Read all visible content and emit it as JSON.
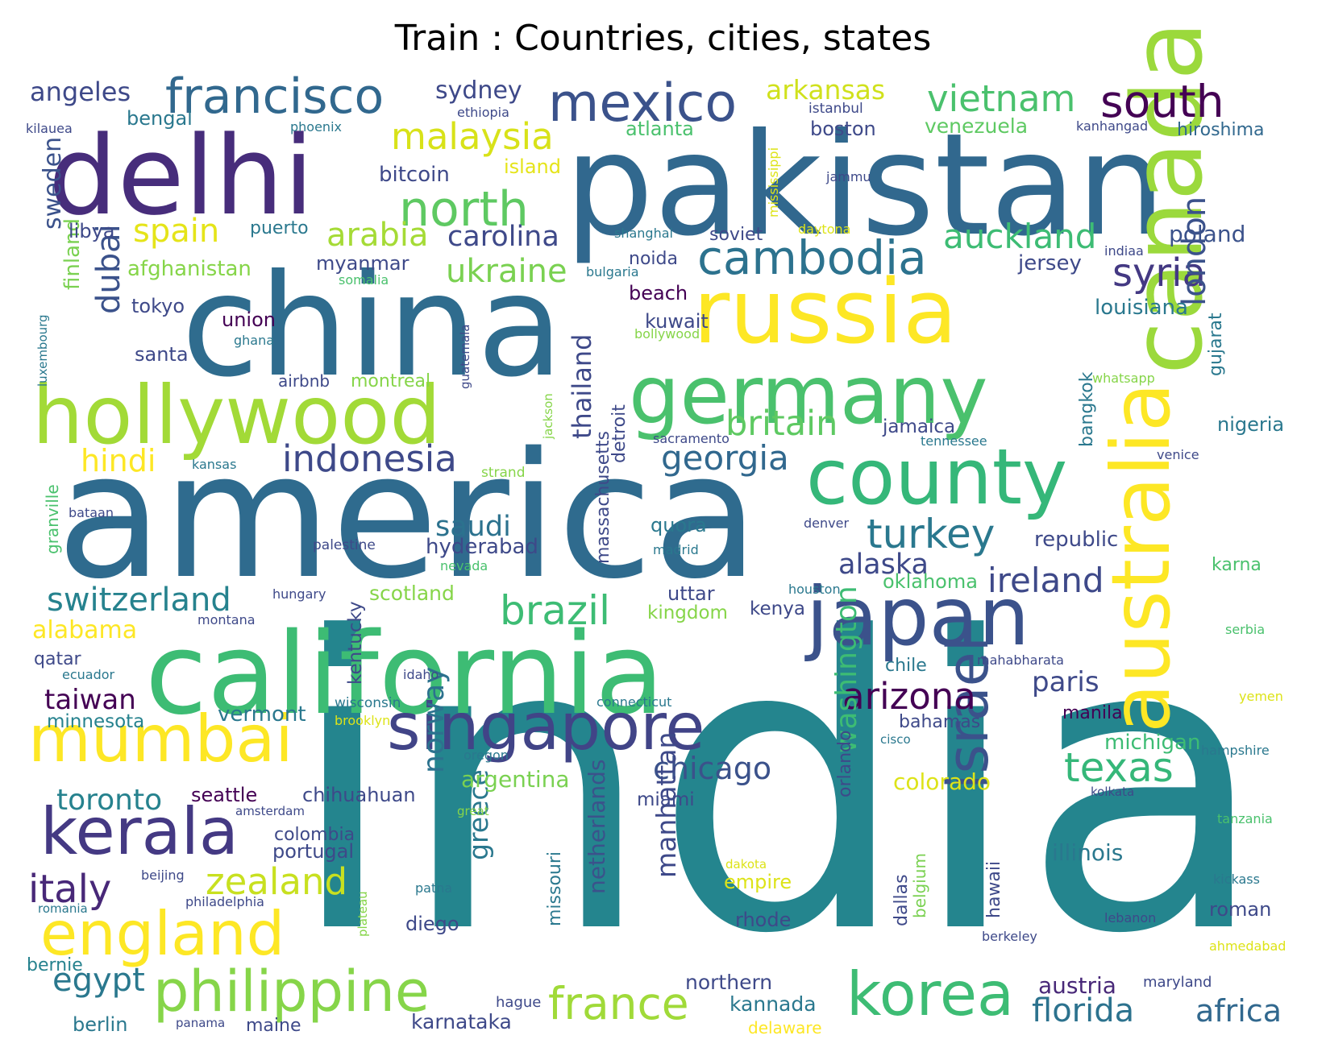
{
  "title": "Train : Countries, cities, states",
  "words": [
    {
      "text": "india",
      "color": "#24858e"
    },
    {
      "text": "america",
      "color": "#2f6b8e"
    },
    {
      "text": "pakistan",
      "color": "#31688e"
    },
    {
      "text": "china",
      "color": "#2f6c8e"
    },
    {
      "text": "california",
      "color": "#3dbc74"
    },
    {
      "text": "delhi",
      "color": "#472d7b"
    },
    {
      "text": "canada",
      "color": "#9bd93c"
    },
    {
      "text": "australia",
      "color": "#fde725"
    },
    {
      "text": "russia",
      "color": "#fde725"
    },
    {
      "text": "germany",
      "color": "#4ac16d"
    },
    {
      "text": "hollywood",
      "color": "#a2da37"
    },
    {
      "text": "japan",
      "color": "#3b528b"
    },
    {
      "text": "county",
      "color": "#35b779"
    },
    {
      "text": "singapore",
      "color": "#414487"
    },
    {
      "text": "mumbai",
      "color": "#fde725"
    },
    {
      "text": "kerala",
      "color": "#443983"
    },
    {
      "text": "england",
      "color": "#fde725"
    },
    {
      "text": "philippine",
      "color": "#86d549"
    },
    {
      "text": "korea",
      "color": "#3dbc74"
    },
    {
      "text": "israel",
      "color": "#3b528b"
    },
    {
      "text": "mexico",
      "color": "#3b528b"
    },
    {
      "text": "francisco",
      "color": "#31688e"
    },
    {
      "text": "south",
      "color": "#440154"
    },
    {
      "text": "north",
      "color": "#5ec962"
    },
    {
      "text": "cambodia",
      "color": "#2c728e"
    },
    {
      "text": "france",
      "color": "#a0da39"
    },
    {
      "text": "brazil",
      "color": "#3dbc74"
    },
    {
      "text": "italy",
      "color": "#482878"
    },
    {
      "text": "zealand",
      "color": "#c8e020"
    },
    {
      "text": "texas",
      "color": "#35b779"
    },
    {
      "text": "turkey",
      "color": "#2a788e"
    },
    {
      "text": "arizona",
      "color": "#440154"
    },
    {
      "text": "indonesia",
      "color": "#3e4989"
    },
    {
      "text": "britain",
      "color": "#5ec962"
    },
    {
      "text": "georgia",
      "color": "#31688e"
    },
    {
      "text": "ireland",
      "color": "#3e4989"
    },
    {
      "text": "switzerland",
      "color": "#26828e"
    },
    {
      "text": "vietnam",
      "color": "#4ac16d"
    },
    {
      "text": "syria",
      "color": "#443983"
    },
    {
      "text": "london",
      "color": "#3b528b"
    },
    {
      "text": "dubai",
      "color": "#3b528b"
    },
    {
      "text": "malaysia",
      "color": "#d8e219"
    },
    {
      "text": "spain",
      "color": "#e5e419"
    },
    {
      "text": "ukraine",
      "color": "#7ad151"
    },
    {
      "text": "auckland",
      "color": "#3dbc74"
    },
    {
      "text": "arabia",
      "color": "#a5db36"
    },
    {
      "text": "carolina",
      "color": "#3e4989"
    },
    {
      "text": "washington",
      "color": "#3dbc74"
    },
    {
      "text": "norway",
      "color": "#2c728e"
    },
    {
      "text": "florida",
      "color": "#2c728e"
    },
    {
      "text": "africa",
      "color": "#31688e"
    },
    {
      "text": "egypt",
      "color": "#2a788e"
    },
    {
      "text": "toronto",
      "color": "#26828e"
    },
    {
      "text": "chicago",
      "color": "#3b528b"
    },
    {
      "text": "alaska",
      "color": "#3e4989"
    },
    {
      "text": "saudi",
      "color": "#2c728e"
    },
    {
      "text": "hindi",
      "color": "#fde725"
    },
    {
      "text": "taiwan",
      "color": "#440154"
    },
    {
      "text": "paris",
      "color": "#3e4989"
    },
    {
      "text": "thailand",
      "color": "#3e4989"
    },
    {
      "text": "manhattan",
      "color": "#3e4989"
    },
    {
      "text": "greece",
      "color": "#2a788e"
    },
    {
      "text": "netherlands",
      "color": "#3b528b"
    },
    {
      "text": "angeles",
      "color": "#3e4989"
    },
    {
      "text": "arkansas",
      "color": "#d0e11c"
    },
    {
      "text": "sydney",
      "color": "#3e4989"
    },
    {
      "text": "alabama",
      "color": "#fde725"
    },
    {
      "text": "argentina",
      "color": "#7ad151"
    },
    {
      "text": "colorado",
      "color": "#dde318"
    },
    {
      "text": "austria",
      "color": "#482878"
    },
    {
      "text": "kannada",
      "color": "#2a788e"
    },
    {
      "text": "karnataka",
      "color": "#3e4989"
    },
    {
      "text": "northern",
      "color": "#3e4989"
    },
    {
      "text": "illinois",
      "color": "#2a788e"
    },
    {
      "text": "poland",
      "color": "#3b528b"
    },
    {
      "text": "venezuela",
      "color": "#5ec962"
    },
    {
      "text": "louisiana",
      "color": "#2a788e"
    },
    {
      "text": "nigeria",
      "color": "#2a788e"
    },
    {
      "text": "michigan",
      "color": "#3dbc74"
    },
    {
      "text": "republic",
      "color": "#3e4989"
    },
    {
      "text": "oklahoma",
      "color": "#4ac16d"
    },
    {
      "text": "afghanistan",
      "color": "#86d549"
    },
    {
      "text": "sweden",
      "color": "#3b528b"
    },
    {
      "text": "finland",
      "color": "#7ad151"
    },
    {
      "text": "tokyo",
      "color": "#3e4989"
    },
    {
      "text": "santa",
      "color": "#3e4989"
    },
    {
      "text": "union",
      "color": "#440154"
    },
    {
      "text": "bitcoin",
      "color": "#3e4989"
    },
    {
      "text": "island",
      "color": "#e5e419"
    },
    {
      "text": "atlanta",
      "color": "#4ac16d"
    },
    {
      "text": "boston",
      "color": "#3e4989"
    },
    {
      "text": "hiroshima",
      "color": "#31688e"
    },
    {
      "text": "bengal",
      "color": "#2a788e"
    },
    {
      "text": "libya",
      "color": "#3e4989"
    },
    {
      "text": "puerto",
      "color": "#2a788e"
    },
    {
      "text": "myanmar",
      "color": "#3e4989"
    },
    {
      "text": "noida",
      "color": "#3e4989"
    },
    {
      "text": "soviet",
      "color": "#3e4989"
    },
    {
      "text": "beach",
      "color": "#440154"
    },
    {
      "text": "kuwait",
      "color": "#3e4989"
    },
    {
      "text": "jersey",
      "color": "#3e4989"
    },
    {
      "text": "hyderabad",
      "color": "#3e4989"
    },
    {
      "text": "quora",
      "color": "#2a788e"
    },
    {
      "text": "kingdom",
      "color": "#86d549"
    },
    {
      "text": "uttar",
      "color": "#3e4989"
    },
    {
      "text": "kenya",
      "color": "#3e4989"
    },
    {
      "text": "scotland",
      "color": "#86d549"
    },
    {
      "text": "kentucky",
      "color": "#3e4989"
    },
    {
      "text": "massachusetts",
      "color": "#3e4989"
    },
    {
      "text": "detroit",
      "color": "#3e4989"
    },
    {
      "text": "bangkok",
      "color": "#2a788e"
    },
    {
      "text": "gujarat",
      "color": "#2a788e"
    },
    {
      "text": "jamaica",
      "color": "#3e4989"
    },
    {
      "text": "qatar",
      "color": "#3e4989"
    },
    {
      "text": "vermont",
      "color": "#2a788e"
    },
    {
      "text": "minnesota",
      "color": "#26828e"
    },
    {
      "text": "seattle",
      "color": "#440154"
    },
    {
      "text": "chihuahuan",
      "color": "#3e4989"
    },
    {
      "text": "colombia",
      "color": "#3e4989"
    },
    {
      "text": "portugal",
      "color": "#3e4989"
    },
    {
      "text": "miami",
      "color": "#3e4989"
    },
    {
      "text": "orlando",
      "color": "#3e4989"
    },
    {
      "text": "chile",
      "color": "#2a788e"
    },
    {
      "text": "bahamas",
      "color": "#3e4989"
    },
    {
      "text": "manila",
      "color": "#440154"
    },
    {
      "text": "karna",
      "color": "#4ac16d"
    },
    {
      "text": "roman",
      "color": "#3e4989"
    },
    {
      "text": "missouri",
      "color": "#2a788e"
    },
    {
      "text": "diego",
      "color": "#3e4989"
    },
    {
      "text": "dallas",
      "color": "#3e4989"
    },
    {
      "text": "belgium",
      "color": "#7ad151"
    },
    {
      "text": "hawaii",
      "color": "#3e4989"
    },
    {
      "text": "empire",
      "color": "#dde318"
    },
    {
      "text": "rhode",
      "color": "#3e4989"
    },
    {
      "text": "berlin",
      "color": "#2a788e"
    },
    {
      "text": "maine",
      "color": "#3e4989"
    },
    {
      "text": "bernie",
      "color": "#26828e"
    },
    {
      "text": "hague",
      "color": "#3e4989"
    },
    {
      "text": "maryland",
      "color": "#3e4989"
    },
    {
      "text": "delaware",
      "color": "#fde725"
    },
    {
      "text": "granville",
      "color": "#4ac16d"
    },
    {
      "text": "airbnb",
      "color": "#3e4989"
    },
    {
      "text": "montreal",
      "color": "#86d549"
    },
    {
      "text": "kilauea",
      "color": "#3e4989"
    },
    {
      "text": "phoenix",
      "color": "#2a788e"
    },
    {
      "text": "ethiopia",
      "color": "#3e4989"
    },
    {
      "text": "istanbul",
      "color": "#3e4989"
    },
    {
      "text": "kanhangad",
      "color": "#3e4989"
    },
    {
      "text": "mississippi",
      "color": "#dde318"
    },
    {
      "text": "jammu",
      "color": "#3e4989"
    },
    {
      "text": "shanghai",
      "color": "#2a788e"
    },
    {
      "text": "daytona",
      "color": "#dde318"
    },
    {
      "text": "indiaa",
      "color": "#3e4989"
    },
    {
      "text": "bulgaria",
      "color": "#2a788e"
    },
    {
      "text": "somalia",
      "color": "#4ac16d"
    },
    {
      "text": "luxembourg",
      "color": "#2a788e"
    },
    {
      "text": "ghana",
      "color": "#2a788e"
    },
    {
      "text": "guatemala",
      "color": "#3e4989"
    },
    {
      "text": "bollywood",
      "color": "#86d549"
    },
    {
      "text": "whatsapp",
      "color": "#86d549"
    },
    {
      "text": "jackson",
      "color": "#86d549"
    },
    {
      "text": "sacramento",
      "color": "#3e4989"
    },
    {
      "text": "tennessee",
      "color": "#2a788e"
    },
    {
      "text": "venice",
      "color": "#3e4989"
    },
    {
      "text": "kansas",
      "color": "#2a788e"
    },
    {
      "text": "strand",
      "color": "#86d549"
    },
    {
      "text": "bataan",
      "color": "#3e4989"
    },
    {
      "text": "palestine",
      "color": "#3e4989"
    },
    {
      "text": "nevada",
      "color": "#4ac16d"
    },
    {
      "text": "madrid",
      "color": "#2a788e"
    },
    {
      "text": "denver",
      "color": "#3e4989"
    },
    {
      "text": "houston",
      "color": "#2a788e"
    },
    {
      "text": "hungary",
      "color": "#3e4989"
    },
    {
      "text": "montana",
      "color": "#3e4989"
    },
    {
      "text": "serbia",
      "color": "#4ac16d"
    },
    {
      "text": "mahabharata",
      "color": "#3e4989"
    },
    {
      "text": "ecuador",
      "color": "#2a788e"
    },
    {
      "text": "idaho",
      "color": "#3e4989"
    },
    {
      "text": "wisconsin",
      "color": "#2a788e"
    },
    {
      "text": "connecticut",
      "color": "#2a788e"
    },
    {
      "text": "brooklyn",
      "color": "#dde318"
    },
    {
      "text": "yemen",
      "color": "#dde318"
    },
    {
      "text": "cisco",
      "color": "#2a788e"
    },
    {
      "text": "oregon",
      "color": "#2a788e"
    },
    {
      "text": "hampshire",
      "color": "#2a788e"
    },
    {
      "text": "amsterdam",
      "color": "#3e4989"
    },
    {
      "text": "great",
      "color": "#86d549"
    },
    {
      "text": "kolkata",
      "color": "#3e4989"
    },
    {
      "text": "tanzania",
      "color": "#4ac16d"
    },
    {
      "text": "beijing",
      "color": "#3e4989"
    },
    {
      "text": "plateau",
      "color": "#86d549"
    },
    {
      "text": "patna",
      "color": "#2a788e"
    },
    {
      "text": "dakota",
      "color": "#dde318"
    },
    {
      "text": "kickass",
      "color": "#2a788e"
    },
    {
      "text": "romania",
      "color": "#2a788e"
    },
    {
      "text": "philadelphia",
      "color": "#3e4989"
    },
    {
      "text": "lebanon",
      "color": "#3e4989"
    },
    {
      "text": "berkeley",
      "color": "#3e4989"
    },
    {
      "text": "ahmedabad",
      "color": "#dde318"
    },
    {
      "text": "panama",
      "color": "#3e4989"
    }
  ]
}
